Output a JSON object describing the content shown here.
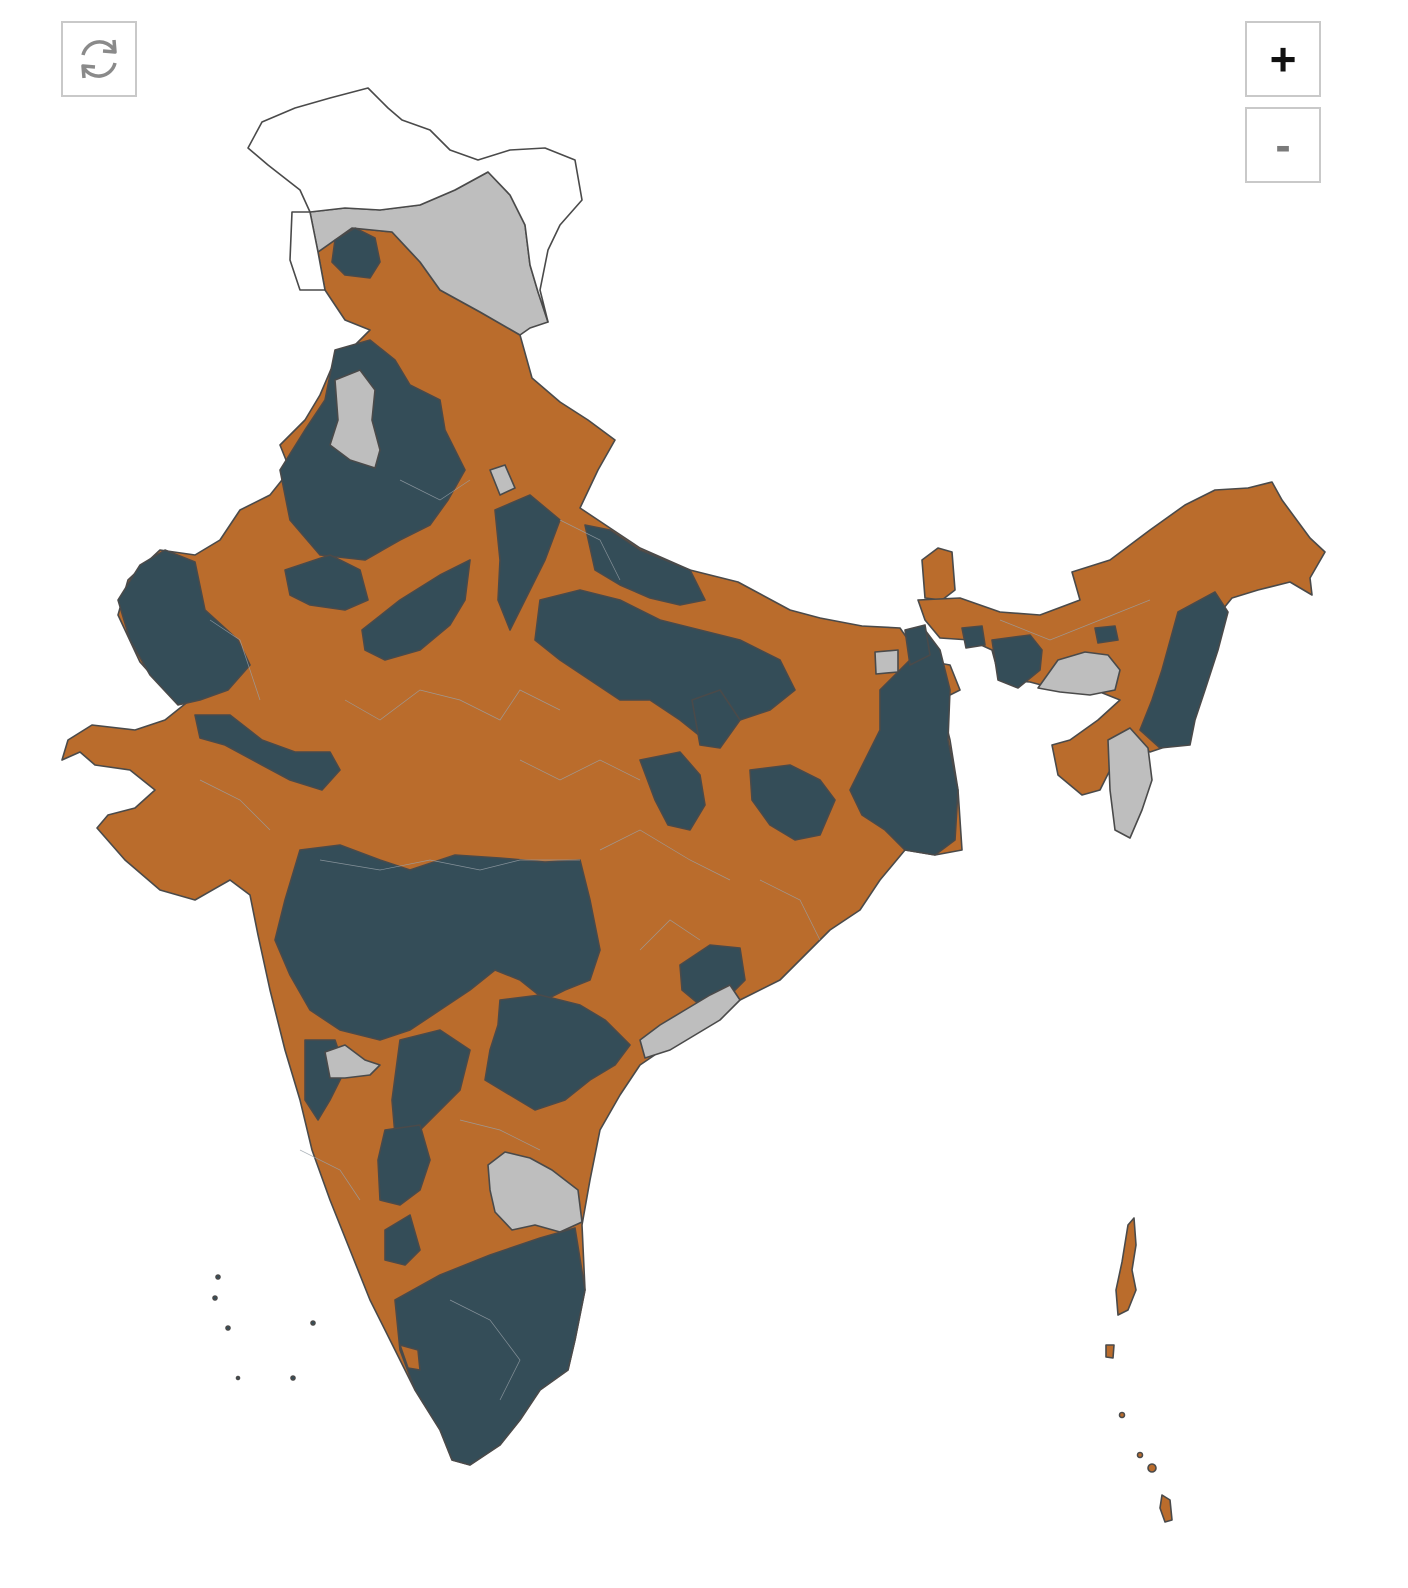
{
  "map": {
    "country": "India",
    "colors": {
      "party_a": "#ba6c2c",
      "party_b": "#344d58",
      "other": "#bebebe",
      "no_data": "#ffffff",
      "border": "#4a4a4a"
    }
  },
  "controls": {
    "reset_icon": "refresh-icon",
    "zoom_in_label": "+",
    "zoom_out_label": "-"
  }
}
